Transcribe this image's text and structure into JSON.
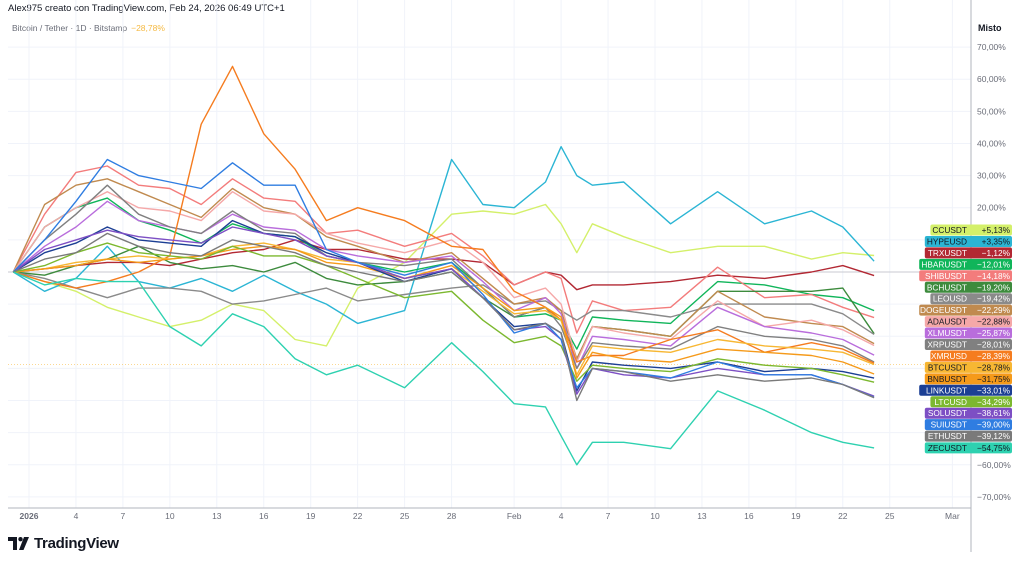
{
  "header": {
    "credit": "Alex975 creato con TradingView.com, Feb 24, 2026 06:49 UTC+1",
    "symbol": "Bitcoin / Tether · 1D · Bitstamp",
    "change": "−28,78%",
    "change_color": "#f5b942",
    "scale_mode": "Misto"
  },
  "footer": {
    "logo_text": "TradingView"
  },
  "chart_data": {
    "type": "line",
    "title": "",
    "xlabel": "",
    "ylabel": "",
    "ylim": [
      -75,
      75
    ],
    "grid": true,
    "y_unit": "%",
    "y_ticks": [
      {
        "value": 70,
        "label": "70,00%"
      },
      {
        "value": 60,
        "label": "60,00%"
      },
      {
        "value": 50,
        "label": "50,00%"
      },
      {
        "value": 40,
        "label": "40,00%"
      },
      {
        "value": 30,
        "label": "30,00%"
      },
      {
        "value": 20,
        "label": "20,00%"
      },
      {
        "value": -60,
        "label": "−60,00%"
      },
      {
        "value": -70,
        "label": "−70,00%"
      }
    ],
    "x_ticks": [
      {
        "date": "2026-01-01",
        "label": "2026",
        "bold": true
      },
      {
        "date": "2026-01-04",
        "label": "4"
      },
      {
        "date": "2026-01-07",
        "label": "7"
      },
      {
        "date": "2026-01-10",
        "label": "10"
      },
      {
        "date": "2026-01-13",
        "label": "13"
      },
      {
        "date": "2026-01-16",
        "label": "16"
      },
      {
        "date": "2026-01-19",
        "label": "19"
      },
      {
        "date": "2026-01-22",
        "label": "22"
      },
      {
        "date": "2026-01-25",
        "label": "25"
      },
      {
        "date": "2026-01-28",
        "label": "28"
      },
      {
        "date": "2026-02-01",
        "label": "Feb"
      },
      {
        "date": "2026-02-04",
        "label": "4"
      },
      {
        "date": "2026-02-07",
        "label": "7"
      },
      {
        "date": "2026-02-10",
        "label": "10"
      },
      {
        "date": "2026-02-13",
        "label": "13"
      },
      {
        "date": "2026-02-16",
        "label": "16"
      },
      {
        "date": "2026-02-19",
        "label": "19"
      },
      {
        "date": "2026-02-22",
        "label": "22"
      },
      {
        "date": "2026-02-25",
        "label": "25"
      },
      {
        "date": "2026-03-01",
        "label": "Mar"
      }
    ],
    "x": [
      "2025-12-31",
      "2026-01-02",
      "2026-01-04",
      "2026-01-06",
      "2026-01-08",
      "2026-01-10",
      "2026-01-12",
      "2026-01-14",
      "2026-01-16",
      "2026-01-18",
      "2026-01-20",
      "2026-01-22",
      "2026-01-25",
      "2026-01-28",
      "2026-01-30",
      "2026-02-01",
      "2026-02-03",
      "2026-02-04",
      "2026-02-05",
      "2026-02-06",
      "2026-02-08",
      "2026-02-11",
      "2026-02-14",
      "2026-02-17",
      "2026-02-20",
      "2026-02-22",
      "2026-02-24"
    ],
    "series": [
      {
        "name": "CCUSDT",
        "last": "+5,13%",
        "color": "#d4f06a",
        "text_color": "#131722",
        "values": [
          0,
          -3,
          -6,
          -11,
          -14,
          -17,
          -15,
          -10,
          -12,
          -21,
          -23,
          -5,
          3,
          18,
          19,
          18,
          21,
          15,
          6,
          15,
          11,
          6,
          8,
          8,
          4,
          6,
          5.13
        ]
      },
      {
        "name": "HYPEUSD",
        "last": "+3,35%",
        "color": "#2bb5d4",
        "text_color": "#131722",
        "values": [
          0,
          -6,
          -2,
          8,
          -3,
          -5,
          -2,
          -6,
          -1,
          -6,
          -10,
          -16,
          -12,
          35,
          21,
          20,
          28,
          39,
          30,
          27,
          28,
          15,
          25,
          15,
          19,
          14,
          3.35
        ]
      },
      {
        "name": "TRXUSDT",
        "last": "−1,12%",
        "color": "#b22833",
        "text_color": "#ffffff",
        "values": [
          0,
          1,
          2,
          3,
          3,
          2,
          4,
          6,
          7,
          10,
          7,
          7,
          4,
          4,
          3,
          -4,
          0,
          -1,
          -5.5,
          -4,
          -4,
          -3,
          -1,
          -2,
          0,
          2,
          -1.12
        ]
      },
      {
        "name": "HBARUSDT",
        "last": "−12,01%",
        "color": "#10b55a",
        "text_color": "#ffffff",
        "values": [
          0,
          14,
          20,
          23,
          16,
          13,
          9,
          15,
          12,
          11,
          5,
          3,
          0,
          3,
          -5,
          -14,
          -13,
          -15,
          -24,
          -14,
          -15,
          -16,
          -3,
          -4,
          -7,
          -8,
          -12.01
        ]
      },
      {
        "name": "SHIBUSDT",
        "last": "−14,18%",
        "color": "#f37c7c",
        "text_color": "#ffffff",
        "values": [
          0,
          18,
          31,
          33,
          27,
          26,
          21,
          29,
          23,
          22,
          12,
          13,
          8,
          12,
          5,
          -4,
          0,
          -2,
          -19,
          -9,
          -12,
          -11,
          1.5,
          -8,
          -7,
          -11,
          -14.18
        ]
      },
      {
        "name": "BCHUSDT",
        "last": "−19,20%",
        "color": "#3d8b3d",
        "text_color": "#ffffff",
        "values": [
          0,
          -1,
          2,
          4,
          8,
          3,
          1,
          2,
          0,
          3,
          -2,
          -4,
          -3,
          0,
          -8,
          -14,
          -11,
          -15,
          -27,
          -17,
          -18,
          -20,
          -6,
          -6,
          -6,
          -5,
          -19.2
        ]
      },
      {
        "name": "LEOUSD",
        "last": "−19,42%",
        "color": "#8a8a8a",
        "text_color": "#ffffff",
        "values": [
          0,
          -2,
          -5,
          -8,
          -5,
          -5,
          -6,
          -10,
          -9,
          -7,
          -5,
          -9,
          -7,
          -5,
          -4,
          -10,
          -9,
          -12,
          -15,
          -12,
          -12,
          -14,
          -10,
          -10,
          -10,
          -13,
          -19.42
        ]
      },
      {
        "name": "DOGEUSDT",
        "last": "−22,29%",
        "color": "#c08a4f",
        "text_color": "#ffffff",
        "values": [
          0,
          21,
          27,
          29,
          25,
          21,
          17,
          26,
          20,
          18,
          11,
          8,
          3,
          6,
          -2,
          -10,
          -8,
          -12,
          -27,
          -17,
          -18,
          -20,
          -6,
          -14,
          -16,
          -17,
          -22.29
        ]
      },
      {
        "name": "ADAUSDT",
        "last": "−22,88%",
        "color": "#f5a8a8",
        "text_color": "#131722",
        "values": [
          0,
          14,
          20,
          25,
          20,
          19,
          16,
          25,
          19,
          18,
          12,
          9,
          6,
          10,
          3,
          -8,
          -5,
          -10,
          -28,
          -17,
          -19,
          -21,
          -9,
          -17,
          -15,
          -18,
          -22.88
        ]
      },
      {
        "name": "XLMUSDT",
        "last": "−25,87%",
        "color": "#b96ddc",
        "text_color": "#ffffff",
        "values": [
          0,
          8,
          14,
          22,
          16,
          14,
          12,
          18,
          14,
          13,
          7,
          5,
          3,
          5,
          -3,
          -12,
          -8,
          -13,
          -30,
          -20,
          -21,
          -23,
          -11,
          -17,
          -19,
          -21,
          -25.87
        ]
      },
      {
        "name": "XRPUSDT",
        "last": "−28,01%",
        "color": "#808080",
        "text_color": "#ffffff",
        "values": [
          0,
          10,
          18,
          27,
          18,
          14,
          12,
          19,
          13,
          12,
          5,
          3,
          2,
          4,
          -5,
          -14,
          -11,
          -17,
          -30,
          -22,
          -23,
          -24,
          -17,
          -20,
          -21,
          -23,
          -28.01
        ]
      },
      {
        "name": "XMRUSD",
        "last": "−28,39%",
        "color": "#f57c1f",
        "text_color": "#ffffff",
        "values": [
          0,
          -3,
          -5,
          -3,
          0,
          5,
          46,
          64,
          43,
          32,
          16,
          20,
          16,
          8,
          7,
          -6,
          -11,
          -15,
          -28,
          -26,
          -26,
          -21,
          -18,
          -25,
          -22,
          -24,
          -28.39
        ]
      },
      {
        "name": "BTCUSDT",
        "last": "−28,78%",
        "color": "#f7b733",
        "text_color": "#131722",
        "values": [
          0,
          1,
          3,
          4,
          5,
          4,
          5,
          8,
          9,
          7,
          4,
          3,
          -2,
          1,
          -6,
          -13,
          -12,
          -15,
          -32,
          -23,
          -24,
          -25,
          -21,
          -23,
          -24,
          -25,
          -28.78
        ]
      },
      {
        "name": "BNBUSDT",
        "last": "−31,75%",
        "color": "#f59a1a",
        "text_color": "#131722",
        "values": [
          0,
          1,
          2,
          4,
          3,
          4,
          5,
          7,
          8,
          7,
          3,
          2,
          -2,
          2,
          -5,
          -12,
          -11,
          -14,
          -33,
          -25,
          -27,
          -28,
          -24,
          -25,
          -26,
          -28,
          -31.75
        ]
      },
      {
        "name": "LINKUSDT",
        "last": "−33,01%",
        "color": "#1c3f94",
        "text_color": "#ffffff",
        "values": [
          0,
          6,
          9,
          14,
          10,
          9,
          8,
          16,
          12,
          11,
          6,
          3,
          -3,
          1,
          -8,
          -17,
          -16,
          -19,
          -37,
          -28,
          -29,
          -30,
          -28,
          -31,
          -30,
          -31,
          -33.01
        ]
      },
      {
        "name": "LTCUSD",
        "last": "−34,29%",
        "color": "#7cb82f",
        "text_color": "#ffffff",
        "values": [
          0,
          2,
          6,
          9,
          6,
          5,
          4,
          8,
          5,
          5,
          2,
          -2,
          -8,
          -6,
          -15,
          -22,
          -20,
          -23,
          -34,
          -29,
          -30,
          -31,
          -27,
          -29,
          -30,
          -32,
          -34.29
        ]
      },
      {
        "name": "SOLUSDT",
        "last": "−38,61%",
        "color": "#7d4fc4",
        "text_color": "#ffffff",
        "values": [
          0,
          7,
          10,
          13,
          11,
          10,
          9,
          14,
          12,
          10,
          5,
          3,
          -2,
          1,
          -8,
          -18,
          -17,
          -21,
          -38,
          -30,
          -32,
          -33,
          -30,
          -32,
          -32,
          -35,
          -38.61
        ]
      },
      {
        "name": "SUIUSDT",
        "last": "−39,00%",
        "color": "#2f7de1",
        "text_color": "#ffffff",
        "values": [
          0,
          10,
          22,
          35,
          30,
          28,
          26,
          34,
          27,
          27,
          7,
          3,
          -1,
          3,
          -7,
          -19,
          -16,
          -21,
          -36,
          -30,
          -31,
          -33,
          -28,
          -32,
          -32,
          -35,
          -39.0
        ]
      },
      {
        "name": "ETHUSDT",
        "last": "−39,12%",
        "color": "#7a7a7a",
        "text_color": "#ffffff",
        "values": [
          0,
          4,
          6,
          12,
          8,
          6,
          5,
          10,
          8,
          6,
          2,
          0,
          -3,
          0,
          -8,
          -18,
          -16,
          -19,
          -40,
          -30,
          -31,
          -34,
          -32,
          -34,
          -33,
          -35,
          -39.12
        ]
      },
      {
        "name": "ZECUSDT",
        "last": "−54,75%",
        "color": "#2ed1b0",
        "text_color": "#131722",
        "values": [
          0,
          -4,
          -2,
          -3,
          -3,
          -17,
          -23,
          -13,
          -17,
          -27,
          -32,
          -29,
          -36,
          -22,
          -31,
          -41,
          -42,
          -51,
          -60,
          -53,
          -53,
          -55,
          -37,
          -43,
          -50,
          -53,
          -54.75
        ]
      }
    ],
    "reference_series": "BTCUSDT"
  }
}
